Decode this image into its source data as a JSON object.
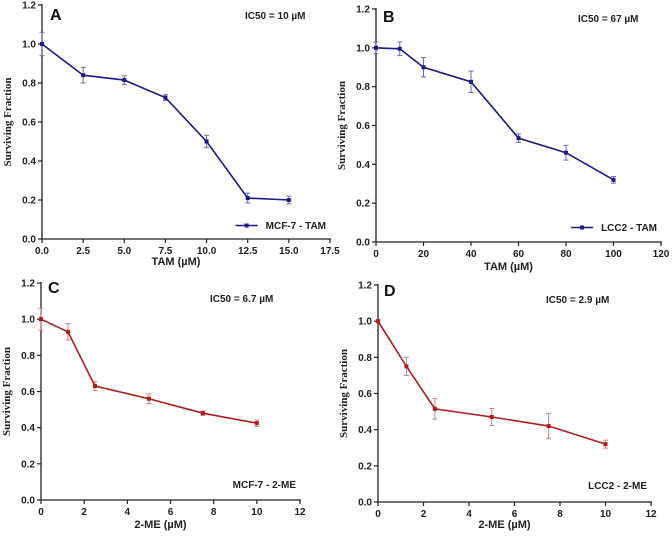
{
  "chart_data": [
    {
      "type": "line",
      "panel": "A",
      "ic50_label": "IC50 = 10 µM",
      "xlabel": "TAM (µM)",
      "ylabel": "Surviving  Fraction",
      "legend": "MCF-7 - TAM",
      "legend_placement": "bottom-right",
      "legend_has_marker": true,
      "color": "#1a1a8c",
      "x_ticks": [
        "0.0",
        "2.5",
        "5.0",
        "7.5",
        "10.0",
        "12.5",
        "15.0",
        "17.5"
      ],
      "x_tick_values": [
        0,
        2.5,
        5,
        7.5,
        10,
        12.5,
        15,
        17.5
      ],
      "y_ticks": [
        "0.0",
        "0.2",
        "0.4",
        "0.6",
        "0.8",
        "1.0",
        "1.2"
      ],
      "xlim": [
        0,
        17.5
      ],
      "ylim": [
        0,
        1.2
      ],
      "x": [
        0,
        2.5,
        5,
        7.5,
        10,
        12.5,
        15
      ],
      "y": [
        1.0,
        0.84,
        0.815,
        0.725,
        0.5,
        0.21,
        0.2
      ],
      "err": [
        0.06,
        0.04,
        0.022,
        0.015,
        0.032,
        0.025,
        0.02
      ]
    },
    {
      "type": "line",
      "panel": "B",
      "ic50_label": "IC50 = 67 µM",
      "xlabel": "TAM (µM)",
      "ylabel": "Surviving  Fraction",
      "legend": "LCC2 - TAM",
      "legend_placement": "bottom-right",
      "legend_has_marker": true,
      "color": "#1a1a8c",
      "x_ticks": [
        "0",
        "20",
        "40",
        "60",
        "80",
        "100",
        "120"
      ],
      "x_tick_values": [
        0,
        20,
        40,
        60,
        80,
        100,
        120
      ],
      "y_ticks": [
        "0.0",
        "0.2",
        "0.4",
        "0.6",
        "0.8",
        "1.0",
        "1.2"
      ],
      "xlim": [
        0,
        120
      ],
      "ylim": [
        0,
        1.2
      ],
      "x": [
        0,
        10,
        20,
        40,
        60,
        80,
        100
      ],
      "y": [
        1.0,
        0.995,
        0.9,
        0.825,
        0.535,
        0.46,
        0.32
      ],
      "err": [
        0.03,
        0.035,
        0.05,
        0.055,
        0.022,
        0.038,
        0.017
      ]
    },
    {
      "type": "line",
      "panel": "C",
      "ic50_label": "IC50  = 6.7 µM",
      "xlabel": "2-ME (µM)",
      "ylabel": "Surviving  Fraction",
      "legend": "MCF-7 - 2-ME",
      "legend_placement": "bottom-right",
      "legend_has_marker": false,
      "color": "#b01c1c",
      "x_ticks": [
        "0",
        "2",
        "4",
        "6",
        "8",
        "10",
        "12"
      ],
      "x_tick_values": [
        0,
        2,
        4,
        6,
        8,
        10,
        12
      ],
      "y_ticks": [
        "0.0",
        "0.2",
        "0.4",
        "0.6",
        "0.8",
        "1.0",
        "1.2"
      ],
      "xlim": [
        0,
        12
      ],
      "ylim": [
        0,
        1.2
      ],
      "x": [
        0,
        1.25,
        2.5,
        5,
        7.5,
        10
      ],
      "y": [
        1.0,
        0.93,
        0.63,
        0.56,
        0.48,
        0.425
      ],
      "err": [
        0.06,
        0.045,
        0.025,
        0.027,
        0.012,
        0.018
      ]
    },
    {
      "type": "line",
      "panel": "D",
      "ic50_label": "IC50 = 2.9  µM",
      "xlabel": "2-ME (µM)",
      "ylabel": "Surviving  Fraction",
      "legend": "LCC2 - 2-ME",
      "legend_placement": "bottom-right",
      "legend_has_marker": false,
      "color": "#b01c1c",
      "x_ticks": [
        "0",
        "2",
        "4",
        "6",
        "8",
        "10",
        "12"
      ],
      "x_tick_values": [
        0,
        2,
        4,
        6,
        8,
        10,
        12
      ],
      "y_ticks": [
        "0.0",
        "0.2",
        "0.4",
        "0.6",
        "0.8",
        "1.0",
        "1.2"
      ],
      "xlim": [
        0,
        12
      ],
      "ylim": [
        0,
        1.2
      ],
      "x": [
        0,
        1.25,
        2.5,
        5,
        7.5,
        10
      ],
      "y": [
        1.0,
        0.75,
        0.515,
        0.47,
        0.42,
        0.32
      ],
      "err": [
        0.005,
        0.05,
        0.057,
        0.047,
        0.07,
        0.022
      ]
    }
  ]
}
